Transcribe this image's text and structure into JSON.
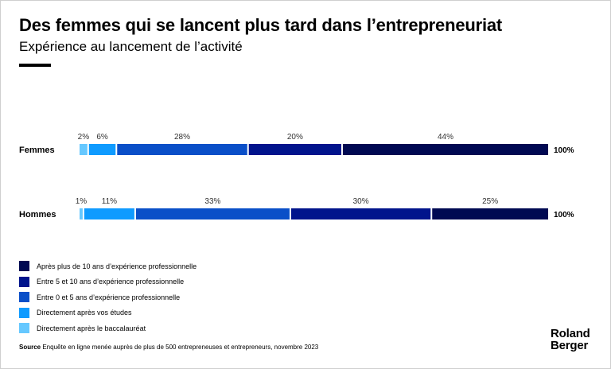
{
  "header": {
    "title": "Des femmes qui se lancent plus tard dans l’entrepreneuriat",
    "subtitle": "Expérience au lancement de l’activité"
  },
  "chart_data": {
    "type": "bar",
    "orientation": "horizontal",
    "stacked": true,
    "categories": [
      "Femmes",
      "Hommes"
    ],
    "totals": [
      "100%",
      "100%"
    ],
    "series": [
      {
        "name": "Directement après le baccalauréat",
        "values": [
          2,
          1
        ],
        "labels": [
          "2%",
          "1%"
        ],
        "color": "#66c8ff"
      },
      {
        "name": "Directement après vos études",
        "values": [
          6,
          11
        ],
        "labels": [
          "6%",
          "11%"
        ],
        "color": "#0f9bff"
      },
      {
        "name": "Entre 0 et 5 ans d’expérience professionnelle",
        "values": [
          28,
          33
        ],
        "labels": [
          "28%",
          "33%"
        ],
        "color": "#0a4fc8"
      },
      {
        "name": "Entre 5 et 10 ans d’expérience professionnelle",
        "values": [
          20,
          30
        ],
        "labels": [
          "20%",
          "30%"
        ],
        "color": "#01148c"
      },
      {
        "name": "Après plus de 10 ans d’expérience professionnelle",
        "values": [
          44,
          25
        ],
        "labels": [
          "44%",
          "25%"
        ],
        "color": "#000952"
      }
    ],
    "legend_position": "bottom-left",
    "grid": false
  },
  "legend": {
    "items": [
      {
        "label": "Après plus de 10 ans d’expérience professionnelle",
        "color": "#000952"
      },
      {
        "label": "Entre 5 et 10 ans d’expérience professionnelle",
        "color": "#01148c"
      },
      {
        "label": "Entre 0 et 5 ans d’expérience professionnelle",
        "color": "#0a4fc8"
      },
      {
        "label": "Directement après vos études",
        "color": "#0f9bff"
      },
      {
        "label": "Directement après le baccalauréat",
        "color": "#66c8ff"
      }
    ]
  },
  "footer": {
    "source_label": "Source",
    "source_text": " Enquête en ligne menée auprès de plus de 500 entrepreneuses et entrepreneurs, novembre 2023",
    "logo_line1": "Roland",
    "logo_line2": "Berger"
  }
}
